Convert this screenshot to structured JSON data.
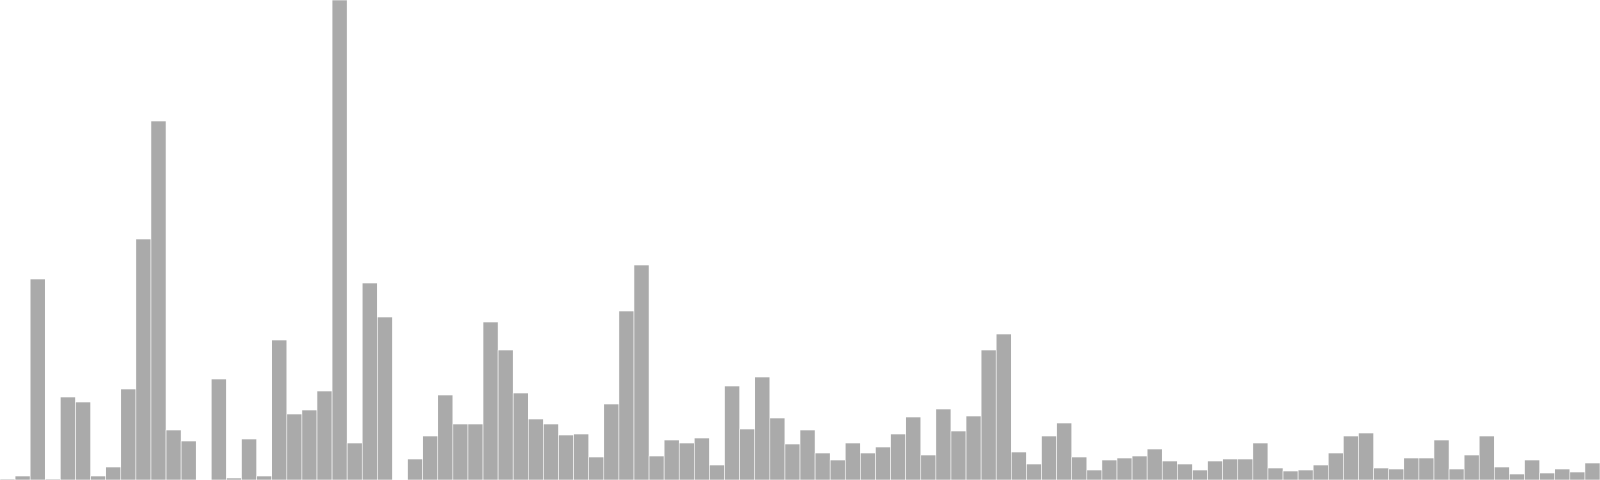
{
  "chart_data": {
    "type": "bar",
    "title": "",
    "xlabel": "",
    "ylabel": "",
    "grid": false,
    "legend": "none",
    "bar_color": "#aaaaaa",
    "bar_edge_color": "#ffffff",
    "ylim": [
      0,
      480
    ],
    "values": [
      1,
      4,
      201,
      1,
      83,
      78,
      4,
      13,
      91,
      241,
      359,
      50,
      39,
      0,
      101,
      2,
      41,
      4,
      140,
      66,
      70,
      89,
      480,
      37,
      197,
      163,
      0,
      21,
      44,
      85,
      56,
      56,
      158,
      130,
      87,
      61,
      56,
      45,
      46,
      23,
      76,
      169,
      215,
      24,
      40,
      37,
      42,
      15,
      94,
      51,
      103,
      62,
      36,
      50,
      27,
      20,
      37,
      27,
      33,
      46,
      63,
      25,
      71,
      49,
      64,
      130,
      146,
      28,
      16,
      44,
      57,
      23,
      10,
      20,
      22,
      24,
      31,
      19,
      16,
      10,
      19,
      21,
      21,
      37,
      12,
      9,
      10,
      15,
      27,
      44,
      47,
      12,
      11,
      22,
      22,
      40,
      11,
      25,
      44,
      13,
      6,
      20,
      7,
      11,
      8,
      17
    ]
  }
}
